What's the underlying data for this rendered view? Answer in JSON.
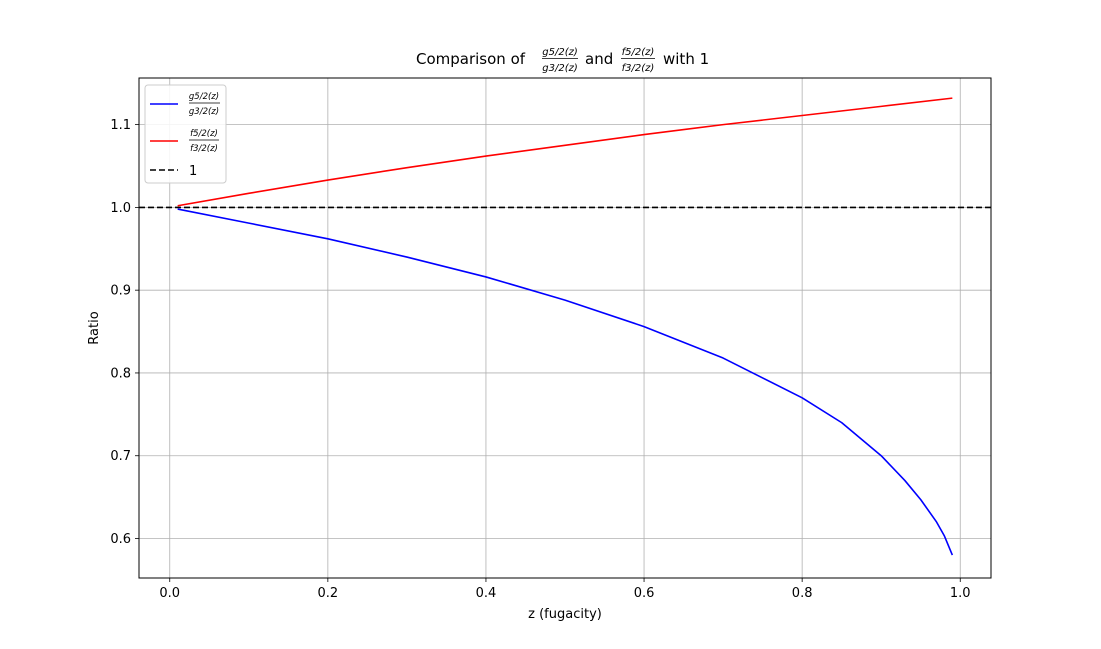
{
  "chart_data": {
    "type": "line",
    "title": {
      "prefix": "Comparison of",
      "frac1_num": "g5/2(z)",
      "frac1_den": "g3/2(z)",
      "conjunction": "and",
      "frac2_num": "f5/2(z)",
      "frac2_den": "f3/2(z)",
      "suffix": "with 1"
    },
    "xlabel": "z (fugacity)",
    "ylabel": "Ratio",
    "xlim": [
      -0.0389,
      1.0389
    ],
    "ylim": [
      0.5523,
      1.1563
    ],
    "xticks": [
      "0.0",
      "0.2",
      "0.4",
      "0.6",
      "0.8",
      "1.0"
    ],
    "yticks": [
      "0.6",
      "0.7",
      "0.8",
      "0.9",
      "1.0",
      "1.1"
    ],
    "grid": true,
    "legend_position": "top-left",
    "series": [
      {
        "name_num": "g5/2(z)",
        "name_den": "g3/2(z)",
        "color": "#0000ff",
        "style": "solid",
        "x": [
          0.01,
          0.1,
          0.2,
          0.3,
          0.4,
          0.5,
          0.6,
          0.7,
          0.8,
          0.85,
          0.9,
          0.93,
          0.95,
          0.97,
          0.98,
          0.99
        ],
        "y": [
          0.998,
          0.981,
          0.962,
          0.94,
          0.916,
          0.888,
          0.856,
          0.818,
          0.77,
          0.74,
          0.7,
          0.67,
          0.647,
          0.62,
          0.603,
          0.58
        ]
      },
      {
        "name_num": "f5/2(z)",
        "name_den": "f3/2(z)",
        "color": "#ff0000",
        "style": "solid",
        "x": [
          0.01,
          0.1,
          0.2,
          0.3,
          0.4,
          0.5,
          0.6,
          0.7,
          0.8,
          0.9,
          0.99
        ],
        "y": [
          1.002,
          1.017,
          1.033,
          1.048,
          1.062,
          1.075,
          1.088,
          1.1,
          1.111,
          1.122,
          1.132
        ]
      },
      {
        "name": "1",
        "color": "#000000",
        "style": "dashed",
        "x": [
          -0.0389,
          1.0389
        ],
        "y": [
          1.0,
          1.0
        ]
      }
    ]
  }
}
